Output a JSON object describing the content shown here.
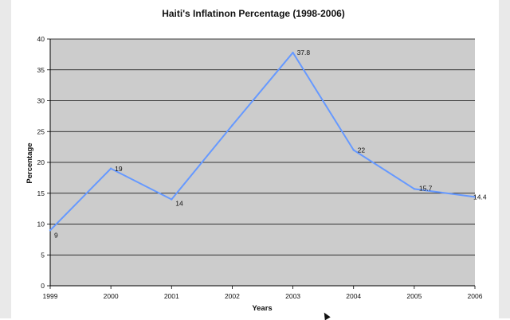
{
  "chart_data": {
    "type": "line",
    "title": "Haiti's Inflatinon Percentage (1998-2006)",
    "xlabel": "Years",
    "ylabel": "Percentage",
    "categories": [
      "1999",
      "2000",
      "2001",
      "2002",
      "2003",
      "2004",
      "2005",
      "2006"
    ],
    "series": [
      {
        "values": [
          9,
          19,
          14,
          26,
          37.8,
          22,
          15.7,
          14.4
        ],
        "color": "#6699ff"
      }
    ],
    "data_labels": [
      "9",
      "19",
      "14",
      "",
      "37.8",
      "22",
      "15.7",
      "14.4"
    ],
    "ylim": [
      0,
      40
    ],
    "yticks": [
      0,
      5,
      10,
      15,
      20,
      25,
      30,
      35,
      40
    ],
    "grid": true,
    "legend": "none",
    "colors": {
      "plot_background": "#cccccc",
      "gridline": "#000000"
    }
  }
}
